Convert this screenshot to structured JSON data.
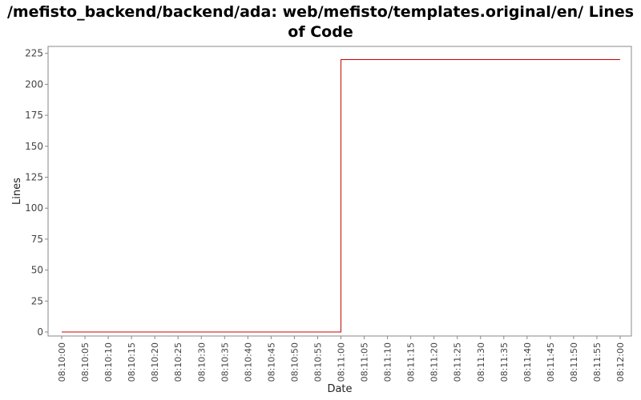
{
  "chart_data": {
    "type": "line",
    "title": "/mefisto_backend/backend/ada: web/mefisto/templates.original/en/ Lines of Code",
    "xlabel": "Date",
    "ylabel": "Lines",
    "ylim": [
      0,
      230
    ],
    "yticks": [
      0,
      25,
      50,
      75,
      100,
      125,
      150,
      175,
      200,
      225
    ],
    "x_ticks": [
      "08:10:00",
      "08:10:05",
      "08:10:10",
      "08:10:15",
      "08:10:20",
      "08:10:25",
      "08:10:30",
      "08:10:35",
      "08:10:40",
      "08:10:45",
      "08:10:50",
      "08:10:55",
      "08:11:00",
      "08:11:05",
      "08:11:10",
      "08:11:15",
      "08:11:20",
      "08:11:25",
      "08:11:30",
      "08:11:35",
      "08:11:40",
      "08:11:45",
      "08:11:50",
      "08:11:55",
      "08:12:00"
    ],
    "step": true,
    "series": [
      {
        "color": "#cc0000",
        "points": [
          {
            "x": "08:10:00",
            "y": 0
          },
          {
            "x": "08:11:00",
            "y": 220
          },
          {
            "x": "08:12:00",
            "y": 220
          }
        ]
      }
    ],
    "grid": false
  }
}
